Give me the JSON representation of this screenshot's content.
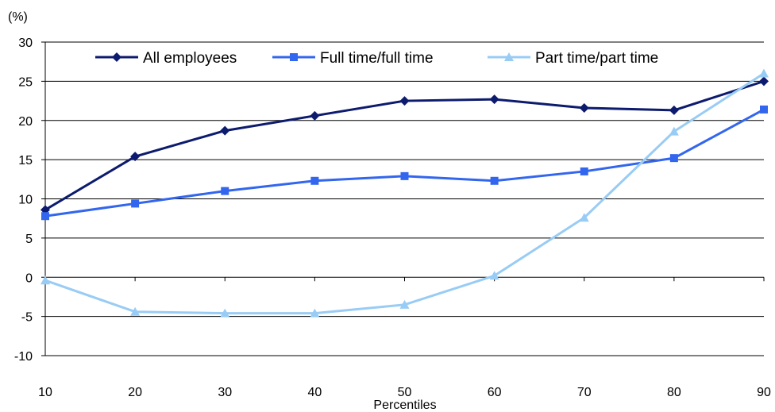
{
  "chart_data": {
    "type": "line",
    "title": "",
    "xlabel": "Percentiles",
    "ylabel": "(%)",
    "x": [
      10,
      20,
      30,
      40,
      50,
      60,
      70,
      80,
      90
    ],
    "ylim": [
      -10,
      30
    ],
    "yticks": [
      -10,
      -5,
      0,
      5,
      10,
      15,
      20,
      25,
      30
    ],
    "xticks": [
      10,
      20,
      30,
      40,
      50,
      60,
      70,
      80,
      90
    ],
    "grid": "horizontal",
    "legend_position": "top",
    "series": [
      {
        "name": "All employees",
        "color": "#0d1b6e",
        "marker": "diamond",
        "values": [
          8.6,
          15.4,
          18.7,
          20.6,
          22.5,
          22.7,
          21.6,
          21.3,
          25.0
        ]
      },
      {
        "name": "Full time/full time",
        "color": "#3366ee",
        "marker": "square",
        "values": [
          7.8,
          9.4,
          11.0,
          12.3,
          12.9,
          12.3,
          13.5,
          15.2,
          21.4
        ]
      },
      {
        "name": "Part time/part time",
        "color": "#99ccf5",
        "marker": "triangle",
        "values": [
          -0.4,
          -4.4,
          -4.6,
          -4.6,
          -3.5,
          0.2,
          7.6,
          18.6,
          26.0
        ]
      }
    ]
  }
}
